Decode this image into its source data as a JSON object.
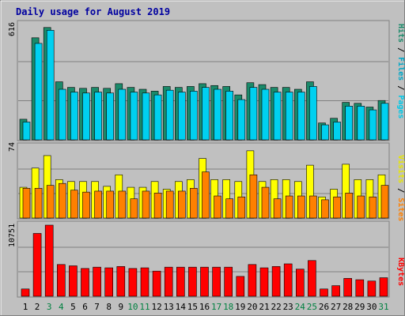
{
  "chart_data": {
    "type": "bar",
    "title": "Daily usage for August 2019",
    "categories": [
      "1",
      "2",
      "3",
      "4",
      "5",
      "6",
      "7",
      "8",
      "9",
      "10",
      "11",
      "12",
      "13",
      "14",
      "15",
      "16",
      "17",
      "18",
      "19",
      "20",
      "21",
      "22",
      "23",
      "24",
      "25",
      "26",
      "27",
      "28",
      "29",
      "30",
      "31"
    ],
    "weekend_days": [
      3,
      4,
      10,
      11,
      17,
      18,
      24,
      25,
      31
    ],
    "panels": [
      {
        "name": "top",
        "ymax_label": "616",
        "ymax": 616,
        "series": [
          {
            "name": "Hits",
            "color": "#1a8a6a",
            "values": [
              110,
              545,
              600,
              310,
              280,
              275,
              280,
              275,
              300,
              280,
              270,
              260,
              285,
              280,
              285,
              300,
              290,
              285,
              240,
              305,
              295,
              280,
              280,
              270,
              310,
              90,
              115,
              200,
              195,
              175,
              210
            ]
          },
          {
            "name": "Files",
            "color": "#00d0f0",
            "values": [
              95,
              515,
              585,
              270,
              255,
              250,
              255,
              250,
              270,
              255,
              250,
              240,
              265,
              255,
              260,
              280,
              270,
              260,
              215,
              280,
              270,
              255,
              255,
              255,
              285,
              80,
              95,
              180,
              180,
              160,
              195
            ]
          },
          {
            "name": "Pages",
            "color": "#0050d0",
            "values": []
          }
        ]
      },
      {
        "name": "middle",
        "ymax_label": "74",
        "ymax": 74,
        "series": [
          {
            "name": "Visits",
            "color": "#ffff00",
            "values": [
              32,
              52,
              65,
              40,
              38,
              38,
              38,
              33,
              45,
              32,
              32,
              38,
              30,
              38,
              40,
              62,
              40,
              40,
              38,
              70,
              38,
              40,
              40,
              38,
              55,
              22,
              30,
              56,
              40,
              40,
              45
            ]
          },
          {
            "name": "Sites",
            "color": "#ff8000",
            "values": [
              31,
              31,
              34,
              36,
              29,
              27,
              28,
              28,
              28,
              20,
              28,
              26,
              28,
              28,
              31,
              48,
              23,
              20,
              22,
              45,
              32,
              20,
              23,
              23,
              23,
              19,
              22,
              26,
              23,
              22,
              34
            ]
          }
        ]
      },
      {
        "name": "bottom",
        "ymax_label": "10751",
        "ymax": 10751,
        "series": [
          {
            "name": "KBytes",
            "color": "#ff0000",
            "values": [
              1100,
              9500,
              10751,
              4800,
              4600,
              4200,
              4400,
              4300,
              4500,
              4200,
              4300,
              3800,
              4400,
              4400,
              4400,
              4400,
              4400,
              4400,
              3000,
              4800,
              4300,
              4500,
              4900,
              4100,
              5400,
              1100,
              1600,
              2700,
              2500,
              2300,
              2800
            ]
          }
        ]
      }
    ]
  }
}
